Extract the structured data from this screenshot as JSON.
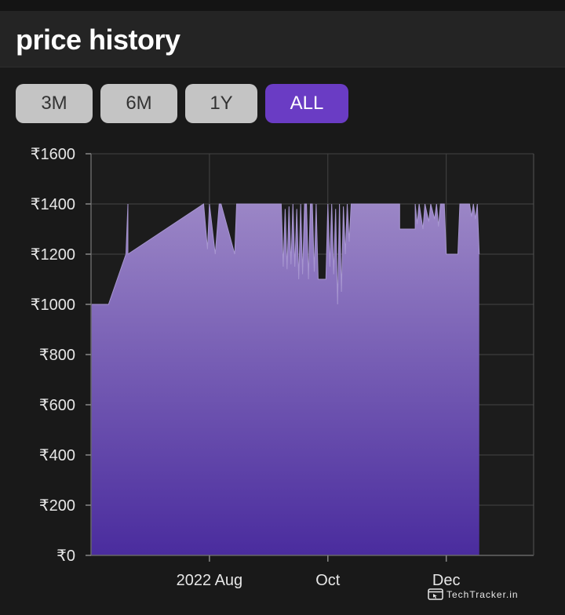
{
  "header": {
    "title": "price history"
  },
  "range_buttons": [
    {
      "label": "3M",
      "active": false
    },
    {
      "label": "6M",
      "active": false
    },
    {
      "label": "1Y",
      "active": false
    },
    {
      "label": "ALL",
      "active": true
    }
  ],
  "watermark": {
    "text": "TechTracker.in"
  },
  "colors": {
    "background": "#191919",
    "header": "#242424",
    "active_button": "#6a3cc4",
    "button": "#c4c4c4",
    "area_top": "#9b86c6",
    "area_bottom": "#4a2c9e",
    "grid": "#444444"
  },
  "chart_data": {
    "type": "area",
    "title": "",
    "xlabel": "",
    "ylabel": "",
    "ylim": [
      0,
      1600
    ],
    "y_ticks": [
      0,
      200,
      400,
      600,
      800,
      1000,
      1200,
      1400,
      1600
    ],
    "y_tick_labels": [
      "₹0",
      "₹200",
      "₹400",
      "₹600",
      "₹800",
      "₹1000",
      "₹1200",
      "₹1400",
      "₹1600"
    ],
    "xlim": [
      "2022-06-01",
      "2023-01-15"
    ],
    "x_ticks": [
      {
        "date": "2022-08-01",
        "label": "2022 Aug"
      },
      {
        "date": "2022-10-01",
        "label": "Oct"
      },
      {
        "date": "2022-12-01",
        "label": "Dec"
      }
    ],
    "grid": true,
    "series": [
      {
        "points": [
          [
            "2022-06-01",
            1000
          ],
          [
            "2022-06-10",
            1000
          ],
          [
            "2022-06-19",
            1200
          ],
          [
            "2022-06-20",
            1400
          ],
          [
            "2022-06-20",
            1200
          ],
          [
            "2022-07-29",
            1400
          ],
          [
            "2022-07-31",
            1220
          ],
          [
            "2022-08-01",
            1400
          ],
          [
            "2022-08-04",
            1200
          ],
          [
            "2022-08-06",
            1400
          ],
          [
            "2022-08-07",
            1400
          ],
          [
            "2022-08-14",
            1200
          ],
          [
            "2022-08-15",
            1400
          ],
          [
            "2022-09-07",
            1400
          ],
          [
            "2022-09-08",
            1150
          ],
          [
            "2022-09-09",
            1380
          ],
          [
            "2022-09-10",
            1140
          ],
          [
            "2022-09-11",
            1390
          ],
          [
            "2022-09-12",
            1160
          ],
          [
            "2022-09-13",
            1400
          ],
          [
            "2022-09-14",
            1150
          ],
          [
            "2022-09-15",
            1380
          ],
          [
            "2022-09-16",
            1100
          ],
          [
            "2022-09-17",
            1400
          ],
          [
            "2022-09-18",
            1120
          ],
          [
            "2022-09-19",
            1400
          ],
          [
            "2022-09-20",
            1400
          ],
          [
            "2022-09-21",
            1100
          ],
          [
            "2022-09-22",
            1400
          ],
          [
            "2022-09-23",
            1400
          ],
          [
            "2022-09-24",
            1130
          ],
          [
            "2022-09-25",
            1400
          ],
          [
            "2022-09-26",
            1100
          ],
          [
            "2022-09-30",
            1100
          ],
          [
            "2022-10-01",
            1400
          ],
          [
            "2022-10-02",
            1150
          ],
          [
            "2022-10-03",
            1400
          ],
          [
            "2022-10-04",
            1120
          ],
          [
            "2022-10-05",
            1380
          ],
          [
            "2022-10-06",
            1000
          ],
          [
            "2022-10-07",
            1400
          ],
          [
            "2022-10-08",
            1050
          ],
          [
            "2022-10-09",
            1390
          ],
          [
            "2022-10-10",
            1200
          ],
          [
            "2022-10-11",
            1400
          ],
          [
            "2022-10-12",
            1250
          ],
          [
            "2022-10-13",
            1400
          ],
          [
            "2022-11-07",
            1400
          ],
          [
            "2022-11-07",
            1300
          ],
          [
            "2022-11-15",
            1300
          ],
          [
            "2022-11-15",
            1400
          ],
          [
            "2022-11-16",
            1320
          ],
          [
            "2022-11-17",
            1400
          ],
          [
            "2022-11-19",
            1300
          ],
          [
            "2022-11-20",
            1400
          ],
          [
            "2022-11-22",
            1330
          ],
          [
            "2022-11-23",
            1400
          ],
          [
            "2022-11-25",
            1340
          ],
          [
            "2022-11-26",
            1400
          ],
          [
            "2022-11-27",
            1310
          ],
          [
            "2022-11-28",
            1400
          ],
          [
            "2022-11-30",
            1400
          ],
          [
            "2022-12-01",
            1200
          ],
          [
            "2022-12-07",
            1200
          ],
          [
            "2022-12-08",
            1400
          ],
          [
            "2022-12-13",
            1400
          ],
          [
            "2022-12-14",
            1350
          ],
          [
            "2022-12-15",
            1400
          ],
          [
            "2022-12-16",
            1340
          ],
          [
            "2022-12-17",
            1400
          ],
          [
            "2022-12-18",
            1200
          ]
        ]
      }
    ]
  }
}
